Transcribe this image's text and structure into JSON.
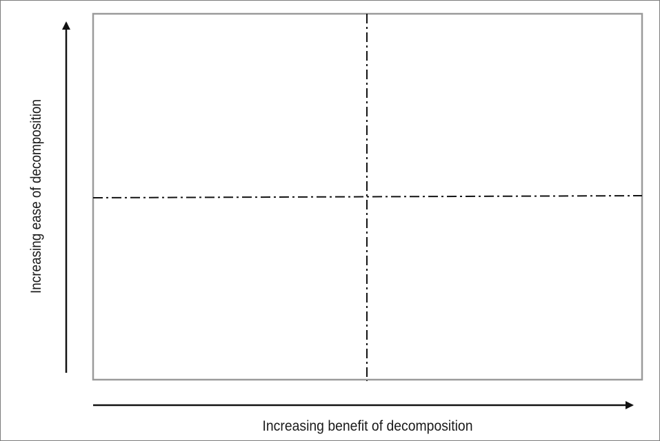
{
  "diagram": {
    "x_axis_label": "Increasing benefit of decomposition",
    "y_axis_label": "Increasing ease of decomposition",
    "colors": {
      "frame": "#9a9a9a",
      "divider": "#111111",
      "arrow": "#111111",
      "text": "#1a1a1a"
    }
  }
}
